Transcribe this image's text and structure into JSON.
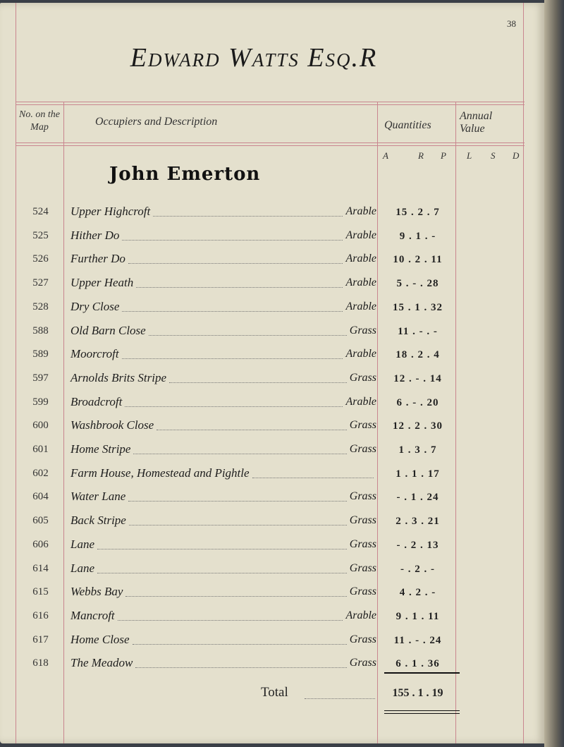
{
  "page_number": "38",
  "title": "Edward Watts Esq.R",
  "headers": {
    "no_on_map": "No. on the Map",
    "occupiers": "Occupiers and Description",
    "quantities": "Quantities",
    "annual_value": "Annual Value",
    "qty_units": [
      "A",
      "R",
      "P"
    ],
    "value_units": [
      "L",
      "S",
      "D"
    ]
  },
  "occupier": "John Emerton",
  "rows": [
    {
      "no": "524",
      "desc": "Upper Highcroft",
      "type": "Arable",
      "qty": "15 . 2 . 7"
    },
    {
      "no": "525",
      "desc": "Hither    Do",
      "type": "Arable",
      "qty": "9 . 1 . -"
    },
    {
      "no": "526",
      "desc": "Further    Do",
      "type": "Arable",
      "qty": "10 . 2 . 11"
    },
    {
      "no": "527",
      "desc": "Upper Heath",
      "type": "Arable",
      "qty": "5 . - . 28"
    },
    {
      "no": "528",
      "desc": "Dry Close",
      "type": "Arable",
      "qty": "15 . 1 . 32"
    },
    {
      "no": "588",
      "desc": "Old Barn Close",
      "type": "Grass",
      "qty": "11 . - . -"
    },
    {
      "no": "589",
      "desc": "Moorcroft",
      "type": "Arable",
      "qty": "18 . 2 . 4"
    },
    {
      "no": "597",
      "desc": "Arnolds Brits Stripe",
      "type": "Grass",
      "qty": "12 . - . 14"
    },
    {
      "no": "599",
      "desc": "Broadcroft",
      "type": "Arable",
      "qty": "6 . - . 20"
    },
    {
      "no": "600",
      "desc": "Washbrook Close",
      "type": "Grass",
      "qty": "12 . 2 . 30"
    },
    {
      "no": "601",
      "desc": "Home Stripe",
      "type": "Grass",
      "qty": "1 . 3 . 7"
    },
    {
      "no": "602",
      "desc": "Farm House, Homestead and Pightle",
      "type": "",
      "qty": "1 . 1 . 17"
    },
    {
      "no": "604",
      "desc": "Water Lane",
      "type": "Grass",
      "qty": "- . 1 . 24"
    },
    {
      "no": "605",
      "desc": "Back Stripe",
      "type": "Grass",
      "qty": "2 . 3 . 21"
    },
    {
      "no": "606",
      "desc": "Lane",
      "type": "Grass",
      "qty": "- . 2 . 13"
    },
    {
      "no": "614",
      "desc": "Lane",
      "type": "Grass",
      "qty": "- . 2 . -"
    },
    {
      "no": "615",
      "desc": "Webbs Bay",
      "type": "Grass",
      "qty": "4 . 2 . -"
    },
    {
      "no": "616",
      "desc": "Mancroft",
      "type": "Arable",
      "qty": "9 . 1 . 11"
    },
    {
      "no": "617",
      "desc": "Home Close",
      "type": "Grass",
      "qty": "11 . - . 24"
    },
    {
      "no": "618",
      "desc": "The Meadow",
      "type": "Grass",
      "qty": "6 . 1 . 36"
    }
  ],
  "total": {
    "label": "Total",
    "qty": "155 . 1 . 19"
  }
}
